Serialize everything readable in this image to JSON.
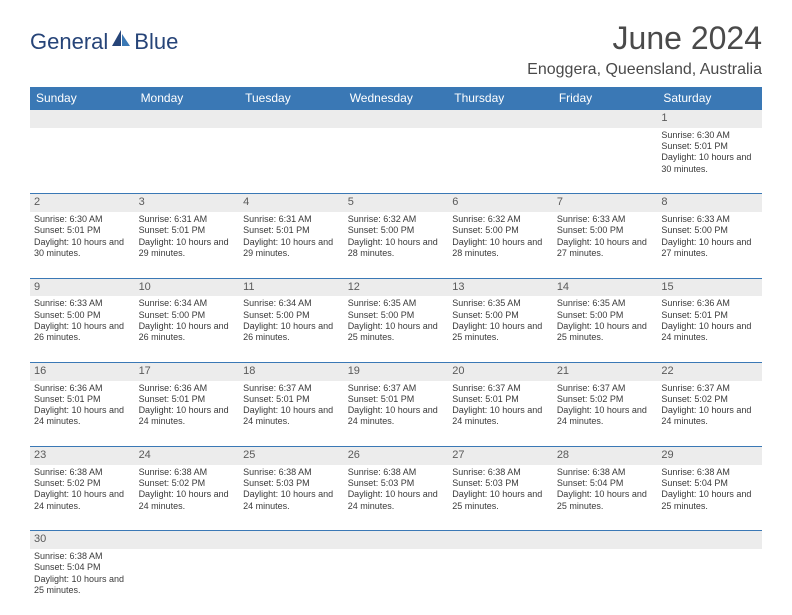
{
  "logo": {
    "part1": "General",
    "part2": "Blue"
  },
  "title": "June 2024",
  "location": "Enoggera, Queensland, Australia",
  "colors": {
    "header_bg": "#3a78b5",
    "header_text": "#ffffff",
    "daynum_bg": "#ececec",
    "border": "#3a78b5",
    "text": "#3a3a3a",
    "logo": "#264478"
  },
  "weekdays": [
    "Sunday",
    "Monday",
    "Tuesday",
    "Wednesday",
    "Thursday",
    "Friday",
    "Saturday"
  ],
  "weeks": [
    [
      null,
      null,
      null,
      null,
      null,
      null,
      {
        "n": "1",
        "sr": "Sunrise: 6:30 AM",
        "ss": "Sunset: 5:01 PM",
        "dl": "Daylight: 10 hours and 30 minutes."
      }
    ],
    [
      {
        "n": "2",
        "sr": "Sunrise: 6:30 AM",
        "ss": "Sunset: 5:01 PM",
        "dl": "Daylight: 10 hours and 30 minutes."
      },
      {
        "n": "3",
        "sr": "Sunrise: 6:31 AM",
        "ss": "Sunset: 5:01 PM",
        "dl": "Daylight: 10 hours and 29 minutes."
      },
      {
        "n": "4",
        "sr": "Sunrise: 6:31 AM",
        "ss": "Sunset: 5:01 PM",
        "dl": "Daylight: 10 hours and 29 minutes."
      },
      {
        "n": "5",
        "sr": "Sunrise: 6:32 AM",
        "ss": "Sunset: 5:00 PM",
        "dl": "Daylight: 10 hours and 28 minutes."
      },
      {
        "n": "6",
        "sr": "Sunrise: 6:32 AM",
        "ss": "Sunset: 5:00 PM",
        "dl": "Daylight: 10 hours and 28 minutes."
      },
      {
        "n": "7",
        "sr": "Sunrise: 6:33 AM",
        "ss": "Sunset: 5:00 PM",
        "dl": "Daylight: 10 hours and 27 minutes."
      },
      {
        "n": "8",
        "sr": "Sunrise: 6:33 AM",
        "ss": "Sunset: 5:00 PM",
        "dl": "Daylight: 10 hours and 27 minutes."
      }
    ],
    [
      {
        "n": "9",
        "sr": "Sunrise: 6:33 AM",
        "ss": "Sunset: 5:00 PM",
        "dl": "Daylight: 10 hours and 26 minutes."
      },
      {
        "n": "10",
        "sr": "Sunrise: 6:34 AM",
        "ss": "Sunset: 5:00 PM",
        "dl": "Daylight: 10 hours and 26 minutes."
      },
      {
        "n": "11",
        "sr": "Sunrise: 6:34 AM",
        "ss": "Sunset: 5:00 PM",
        "dl": "Daylight: 10 hours and 26 minutes."
      },
      {
        "n": "12",
        "sr": "Sunrise: 6:35 AM",
        "ss": "Sunset: 5:00 PM",
        "dl": "Daylight: 10 hours and 25 minutes."
      },
      {
        "n": "13",
        "sr": "Sunrise: 6:35 AM",
        "ss": "Sunset: 5:00 PM",
        "dl": "Daylight: 10 hours and 25 minutes."
      },
      {
        "n": "14",
        "sr": "Sunrise: 6:35 AM",
        "ss": "Sunset: 5:00 PM",
        "dl": "Daylight: 10 hours and 25 minutes."
      },
      {
        "n": "15",
        "sr": "Sunrise: 6:36 AM",
        "ss": "Sunset: 5:01 PM",
        "dl": "Daylight: 10 hours and 24 minutes."
      }
    ],
    [
      {
        "n": "16",
        "sr": "Sunrise: 6:36 AM",
        "ss": "Sunset: 5:01 PM",
        "dl": "Daylight: 10 hours and 24 minutes."
      },
      {
        "n": "17",
        "sr": "Sunrise: 6:36 AM",
        "ss": "Sunset: 5:01 PM",
        "dl": "Daylight: 10 hours and 24 minutes."
      },
      {
        "n": "18",
        "sr": "Sunrise: 6:37 AM",
        "ss": "Sunset: 5:01 PM",
        "dl": "Daylight: 10 hours and 24 minutes."
      },
      {
        "n": "19",
        "sr": "Sunrise: 6:37 AM",
        "ss": "Sunset: 5:01 PM",
        "dl": "Daylight: 10 hours and 24 minutes."
      },
      {
        "n": "20",
        "sr": "Sunrise: 6:37 AM",
        "ss": "Sunset: 5:01 PM",
        "dl": "Daylight: 10 hours and 24 minutes."
      },
      {
        "n": "21",
        "sr": "Sunrise: 6:37 AM",
        "ss": "Sunset: 5:02 PM",
        "dl": "Daylight: 10 hours and 24 minutes."
      },
      {
        "n": "22",
        "sr": "Sunrise: 6:37 AM",
        "ss": "Sunset: 5:02 PM",
        "dl": "Daylight: 10 hours and 24 minutes."
      }
    ],
    [
      {
        "n": "23",
        "sr": "Sunrise: 6:38 AM",
        "ss": "Sunset: 5:02 PM",
        "dl": "Daylight: 10 hours and 24 minutes."
      },
      {
        "n": "24",
        "sr": "Sunrise: 6:38 AM",
        "ss": "Sunset: 5:02 PM",
        "dl": "Daylight: 10 hours and 24 minutes."
      },
      {
        "n": "25",
        "sr": "Sunrise: 6:38 AM",
        "ss": "Sunset: 5:03 PM",
        "dl": "Daylight: 10 hours and 24 minutes."
      },
      {
        "n": "26",
        "sr": "Sunrise: 6:38 AM",
        "ss": "Sunset: 5:03 PM",
        "dl": "Daylight: 10 hours and 24 minutes."
      },
      {
        "n": "27",
        "sr": "Sunrise: 6:38 AM",
        "ss": "Sunset: 5:03 PM",
        "dl": "Daylight: 10 hours and 25 minutes."
      },
      {
        "n": "28",
        "sr": "Sunrise: 6:38 AM",
        "ss": "Sunset: 5:04 PM",
        "dl": "Daylight: 10 hours and 25 minutes."
      },
      {
        "n": "29",
        "sr": "Sunrise: 6:38 AM",
        "ss": "Sunset: 5:04 PM",
        "dl": "Daylight: 10 hours and 25 minutes."
      }
    ],
    [
      {
        "n": "30",
        "sr": "Sunrise: 6:38 AM",
        "ss": "Sunset: 5:04 PM",
        "dl": "Daylight: 10 hours and 25 minutes."
      },
      null,
      null,
      null,
      null,
      null,
      null
    ]
  ]
}
